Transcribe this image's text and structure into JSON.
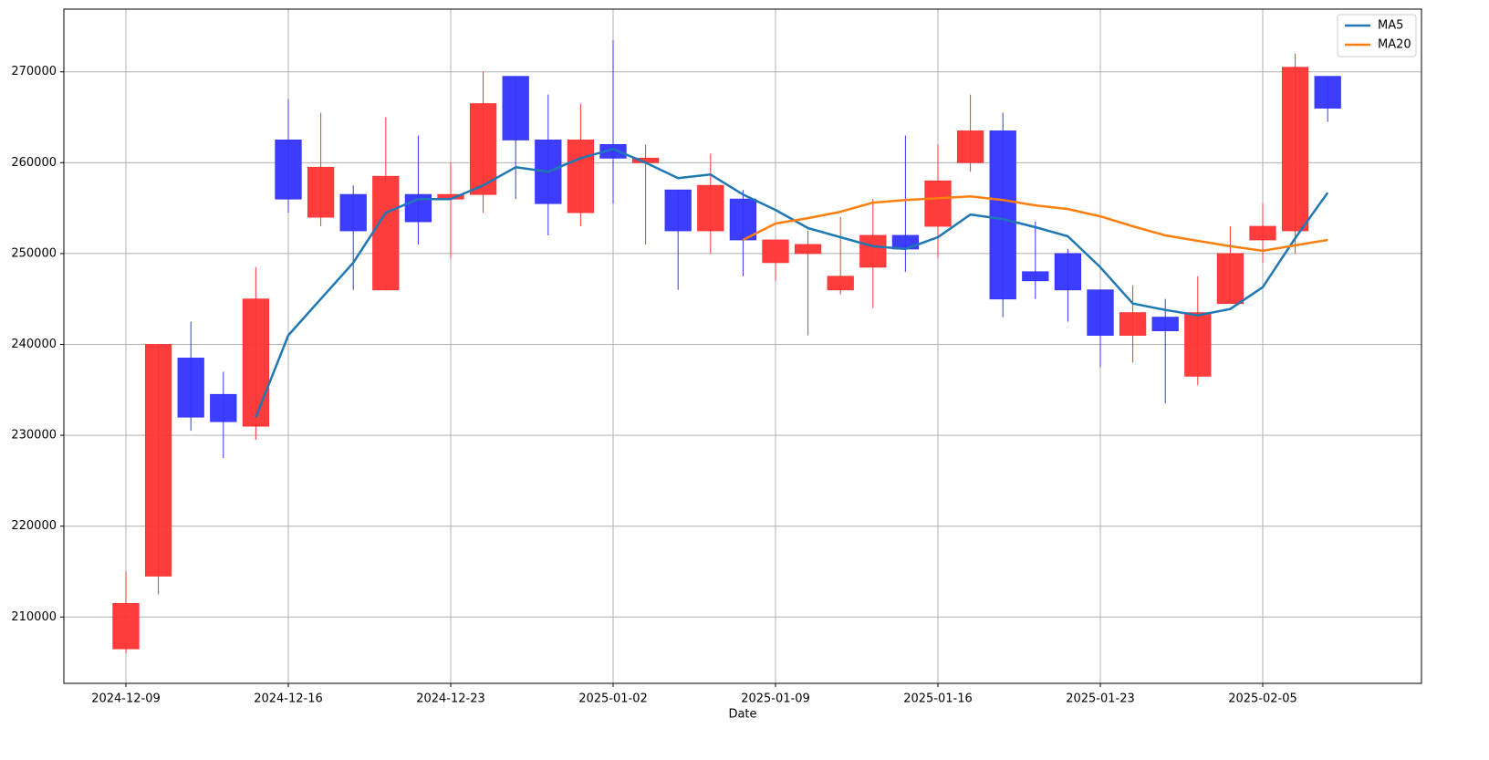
{
  "chart_data": {
    "type": "candlestick",
    "xlabel": "Date",
    "categories": [
      "2024-12-09",
      null,
      null,
      null,
      null,
      "2024-12-16",
      null,
      null,
      null,
      null,
      "2024-12-23",
      null,
      null,
      null,
      null,
      "2025-01-02",
      null,
      null,
      null,
      null,
      "2025-01-09",
      null,
      null,
      null,
      null,
      "2025-01-16",
      null,
      null,
      null,
      null,
      "2025-01-23",
      null,
      null,
      null,
      null,
      "2025-02-05",
      null,
      null
    ],
    "open": [
      206500,
      214500,
      238500,
      234500,
      231000,
      262500,
      254000,
      256500,
      246000,
      256500,
      256000,
      256500,
      269500,
      262500,
      254500,
      262000,
      260000,
      257000,
      252500,
      256000,
      249000,
      250000,
      246000,
      248500,
      252000,
      253000,
      260000,
      263500,
      248000,
      250000,
      246000,
      241000,
      243000,
      236500,
      244500,
      251500,
      252500,
      269500
    ],
    "high": [
      215000,
      240000,
      242500,
      237000,
      248500,
      267000,
      265500,
      257500,
      265000,
      263000,
      260000,
      270000,
      269500,
      267500,
      266500,
      273500,
      262000,
      257000,
      261000,
      257000,
      251500,
      252500,
      254000,
      256000,
      263000,
      262000,
      267500,
      265500,
      253500,
      250500,
      246000,
      246500,
      245000,
      247500,
      253000,
      255500,
      272000,
      269500
    ],
    "low": [
      206000,
      212500,
      230500,
      227500,
      229500,
      254500,
      253000,
      246000,
      246000,
      251000,
      249500,
      254500,
      256000,
      252000,
      253000,
      255500,
      251000,
      246000,
      250000,
      247500,
      247000,
      241000,
      245500,
      244000,
      248000,
      249500,
      259000,
      243000,
      245000,
      242500,
      237500,
      238000,
      233500,
      235500,
      244500,
      249000,
      250000,
      264500
    ],
    "close": [
      211500,
      240000,
      232000,
      231500,
      245000,
      256000,
      259500,
      252500,
      258500,
      253500,
      256500,
      266500,
      262500,
      255500,
      262500,
      260500,
      260500,
      252500,
      257500,
      251500,
      251500,
      251000,
      247500,
      252000,
      250500,
      258000,
      263500,
      245000,
      247000,
      246000,
      241000,
      243500,
      241500,
      243500,
      250000,
      253000,
      270500,
      266000
    ],
    "up_color": "#ff3333",
    "down_color": "#3333ff",
    "series": [
      {
        "name": "MA5",
        "color": "#1f77b4",
        "values": [
          null,
          null,
          null,
          null,
          232000,
          241000,
          245000,
          249000,
          254500,
          256000,
          256000,
          257500,
          259500,
          259000,
          260500,
          261500,
          260000,
          258300,
          258700,
          256500,
          254800,
          252800,
          251800,
          250800,
          250500,
          251800,
          254300,
          253800,
          252900,
          251900,
          248500,
          244500,
          243800,
          243200,
          243900,
          246300,
          251700,
          256700
        ]
      },
      {
        "name": "MA20",
        "color": "#ff7f0e",
        "values": [
          null,
          null,
          null,
          null,
          null,
          null,
          null,
          null,
          null,
          null,
          null,
          null,
          null,
          null,
          null,
          null,
          null,
          null,
          null,
          251500,
          253300,
          253900,
          254600,
          255600,
          255900,
          256100,
          256300,
          255900,
          255300,
          254900,
          254100,
          253000,
          252000,
          251400,
          250800,
          250300,
          250900,
          251500
        ]
      }
    ],
    "ylim": [
      202700,
      276900
    ],
    "yticks": [
      210000,
      220000,
      230000,
      240000,
      250000,
      260000,
      270000
    ],
    "grid": true,
    "legend": "upper right"
  }
}
